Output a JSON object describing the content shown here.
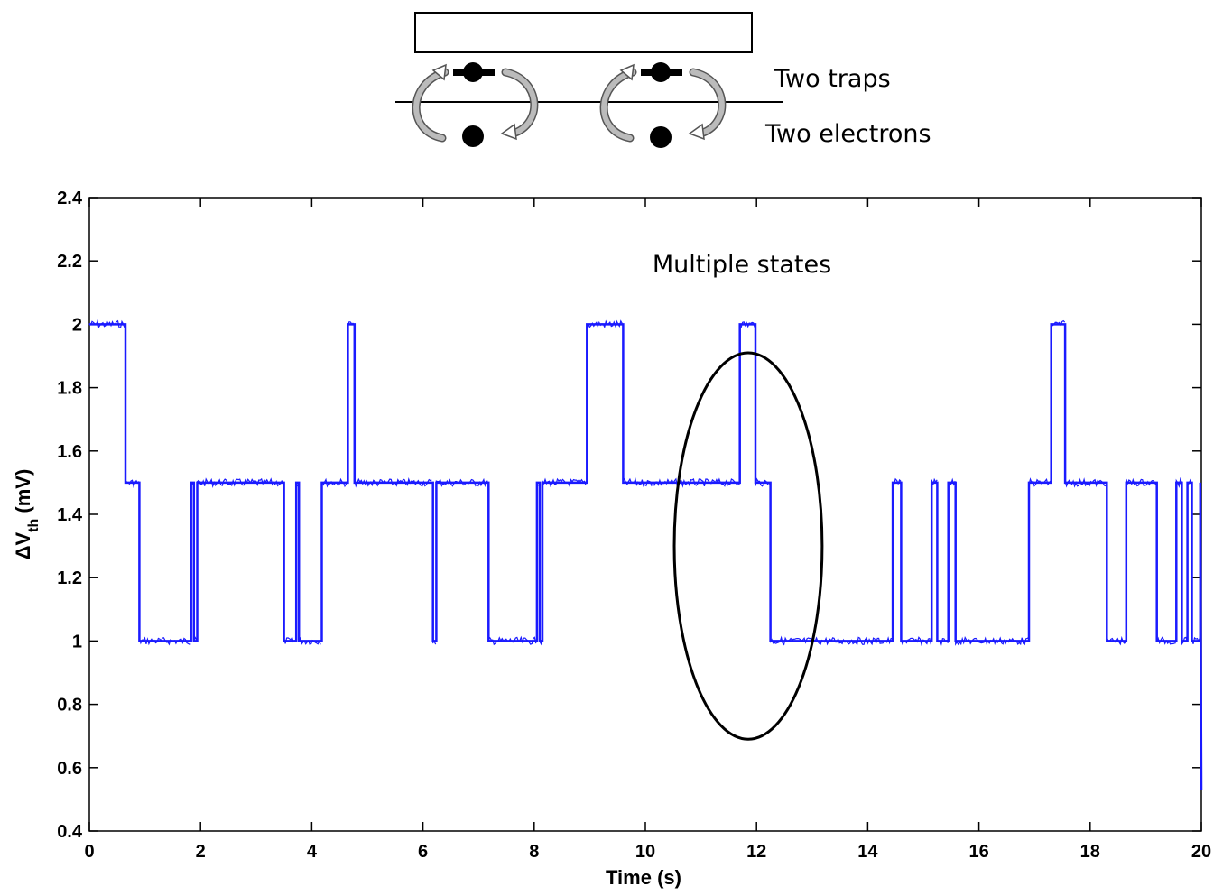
{
  "diagram": {
    "traps_label": "Two traps",
    "electrons_label": "Two electrons"
  },
  "chart_data": {
    "type": "line",
    "title": "",
    "xlabel": "Time (s)",
    "ylabel_main": "ΔV",
    "ylabel_sub": "th",
    "ylabel_unit": " (mV)",
    "xlim": [
      0,
      20
    ],
    "ylim": [
      0.4,
      2.4
    ],
    "xticks": [
      "0",
      "2",
      "4",
      "6",
      "8",
      "10",
      "12",
      "14",
      "16",
      "18",
      "20"
    ],
    "yticks": [
      "0.4",
      "0.6",
      "0.8",
      "1",
      "1.2",
      "1.4",
      "1.6",
      "1.8",
      "2",
      "2.2",
      "2.4"
    ],
    "grid": false,
    "line_color": "#1a1aff",
    "annotation": {
      "text": "Multiple states",
      "ellipse_center": [
        11.85,
        1.3
      ],
      "ellipse_half_width": 1.33,
      "ellipse_half_height": 0.61
    },
    "series": [
      {
        "x": [
          0,
          0.65,
          0.65,
          0.9,
          0.9,
          1.83,
          1.83,
          1.88,
          1.88,
          1.94,
          1.94,
          2.0,
          2.0,
          3.5,
          3.5,
          3.72,
          3.72,
          3.77,
          3.77,
          4.18,
          4.18,
          4.65,
          4.65,
          4.77,
          4.77,
          6.18,
          6.18,
          6.24,
          6.24,
          7.18,
          7.18,
          8.05,
          8.05,
          8.1,
          8.1,
          8.15,
          8.15,
          8.95,
          8.95,
          9.6,
          9.6,
          11.7,
          11.7,
          11.98,
          11.98,
          12.25,
          12.25,
          14.45,
          14.45,
          14.6,
          14.6,
          15.15,
          15.15,
          15.25,
          15.25,
          15.45,
          15.45,
          15.58,
          15.58,
          16.9,
          16.9,
          17.3,
          17.3,
          17.55,
          17.55,
          18.3,
          18.3,
          18.65,
          18.65,
          19.2,
          19.2,
          19.55,
          19.55,
          19.65,
          19.65,
          19.75,
          19.75,
          19.83,
          19.83,
          19.98,
          19.98,
          20.0
        ],
        "y": [
          2.0,
          2.0,
          1.5,
          1.5,
          1.0,
          1.0,
          1.5,
          1.5,
          1.0,
          1.0,
          1.5,
          1.5,
          1.5,
          1.5,
          1.0,
          1.0,
          1.5,
          1.5,
          1.0,
          1.0,
          1.5,
          1.5,
          2.0,
          2.0,
          1.5,
          1.5,
          1.0,
          1.0,
          1.5,
          1.5,
          1.0,
          1.0,
          1.5,
          1.5,
          1.0,
          1.0,
          1.5,
          1.5,
          2.0,
          2.0,
          1.5,
          1.5,
          2.0,
          2.0,
          1.5,
          1.5,
          1.0,
          1.0,
          1.5,
          1.5,
          1.0,
          1.0,
          1.5,
          1.5,
          1.0,
          1.0,
          1.5,
          1.5,
          1.0,
          1.0,
          1.5,
          1.5,
          2.0,
          2.0,
          1.5,
          1.5,
          1.0,
          1.0,
          1.5,
          1.5,
          1.0,
          1.0,
          1.5,
          1.5,
          1.0,
          1.0,
          1.5,
          1.5,
          1.0,
          1.0,
          1.5,
          0.53
        ]
      }
    ]
  }
}
